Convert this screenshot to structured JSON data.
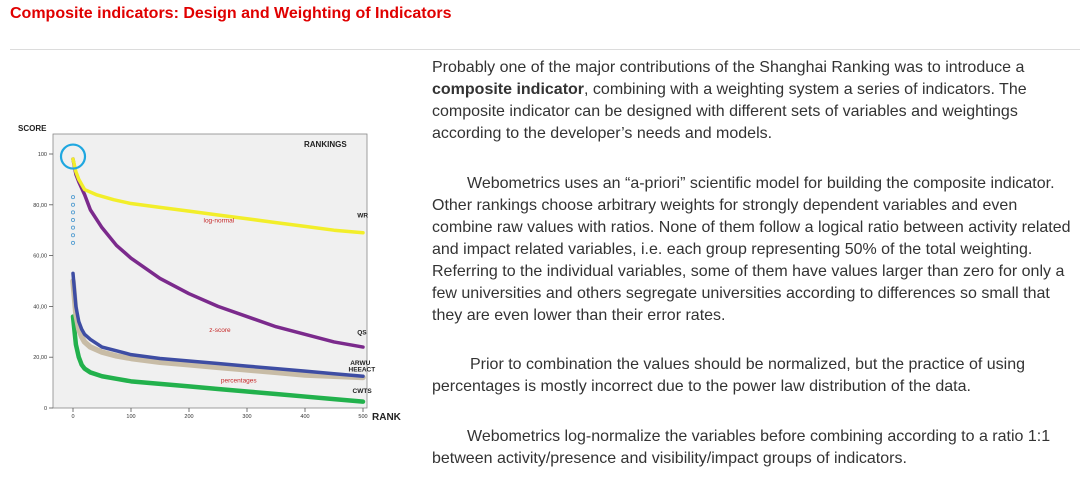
{
  "header": {
    "title": "Composite indicators: Design and Weighting of Indicators",
    "title_color": "#e00000"
  },
  "figure": {
    "chart_data": {
      "type": "line",
      "title": "RANKINGS",
      "ylabel": "SCORE",
      "xlabel": "RANK",
      "ylim": [
        0,
        100
      ],
      "xlim": [
        0,
        500
      ],
      "x_ticks": [
        "0",
        "100",
        "200",
        "300",
        "400",
        "500"
      ],
      "y_ticks": [
        "0",
        "20,00",
        "40,00",
        "60,00",
        "80,00",
        "100"
      ],
      "grid": false,
      "series": [
        {
          "name": "WR",
          "color": "#f2ee2a",
          "x": [
            0,
            5,
            10,
            20,
            40,
            70,
            100,
            150,
            200,
            250,
            300,
            350,
            400,
            450,
            500
          ],
          "y": [
            98,
            93,
            90,
            86,
            84,
            82,
            80.5,
            79,
            77.5,
            76,
            74.5,
            73,
            71.5,
            70,
            69
          ]
        },
        {
          "name": "QS",
          "color": "#7b2a8c",
          "x": [
            0,
            5,
            10,
            20,
            30,
            50,
            75,
            100,
            150,
            200,
            250,
            300,
            350,
            400,
            450,
            500
          ],
          "y": [
            98,
            92,
            89,
            84,
            78,
            71,
            64,
            59,
            51,
            45,
            40,
            36,
            32,
            29,
            26,
            24
          ]
        },
        {
          "name": "ARWU",
          "color": "#3e4da3",
          "x": [
            0,
            5,
            10,
            15,
            20,
            30,
            50,
            75,
            100,
            150,
            200,
            250,
            300,
            350,
            400,
            450,
            500
          ],
          "y": [
            53,
            40,
            34,
            31,
            29,
            27,
            24,
            22.5,
            21,
            19.5,
            18.5,
            17.5,
            16.5,
            15.5,
            14.5,
            13.5,
            12.5
          ]
        },
        {
          "name": "HEEACT",
          "color": "#c8bca6",
          "x": [
            0,
            5,
            10,
            15,
            20,
            30,
            50,
            75,
            100,
            150,
            200,
            250,
            300,
            350,
            400,
            450,
            500
          ],
          "y": [
            50,
            37,
            31,
            28,
            26,
            24,
            22,
            20.5,
            19.5,
            18,
            17,
            16,
            15,
            14,
            13,
            12.5,
            12
          ]
        },
        {
          "name": "CWTS",
          "color": "#22b14c",
          "x": [
            0,
            5,
            10,
            15,
            20,
            30,
            50,
            75,
            100,
            150,
            200,
            250,
            300,
            350,
            400,
            450,
            500
          ],
          "y": [
            36,
            25,
            20,
            17,
            15.5,
            14,
            12.5,
            11.5,
            10.5,
            9.5,
            8.5,
            7.5,
            6.5,
            5.5,
            4.5,
            3.5,
            2.5
          ]
        }
      ],
      "scatter": {
        "name": "log-normal",
        "color": "#4f9bd0",
        "x": [
          0,
          0,
          0,
          0,
          0,
          0,
          0
        ],
        "y": [
          83,
          80,
          77,
          74,
          71,
          68,
          65
        ]
      },
      "annotations": [
        {
          "text": "log-normal",
          "x": 225,
          "y": 73,
          "color": "#c62828"
        },
        {
          "text": "z-score",
          "x": 235,
          "y": 30,
          "color": "#c62828"
        },
        {
          "text": "percentages",
          "x": 255,
          "y": 10,
          "color": "#c62828"
        },
        {
          "text": "WR",
          "x": 490,
          "y": 75,
          "color": "#222222"
        },
        {
          "text": "QS",
          "x": 490,
          "y": 29,
          "color": "#222222"
        },
        {
          "text": "ARWU",
          "x": 478,
          "y": 17,
          "color": "#222222"
        },
        {
          "text": "HEEACT",
          "x": 475,
          "y": 14.4,
          "color": "#222222"
        },
        {
          "text": "CWTS",
          "x": 482,
          "y": 6,
          "color": "#222222"
        }
      ],
      "highlight": {
        "x": 0,
        "y": 99,
        "color": "#1fa7e0"
      }
    }
  },
  "body": {
    "p1_before": "Probably one of the major contributions of the Shanghai Ranking was to introduce a ",
    "p1_bold": "composite indicator",
    "p1_after": ", combining with a weighting system a series of indicators. The composite indicator can be designed with different sets of variables and weightings according to the developer’s needs and models.",
    "p2": "Webometrics uses an “a-priori” scientific model for building the composite indicator. Other rankings choose arbitrary weights for strongly dependent variables and even combine raw values with ratios. None of them follow a logical ratio between activity related and impact related variables, i.e. each group representing 50% of the total weighting. Referring to the individual variables, some of them have values larger than zero for only a few universities and others segregate universities according to differences so small that they are even lower than their error rates.",
    "p3": "Prior to combination the values should be normalized, but the practice of using percentages is mostly incorrect due to the power law distribution of the data.",
    "p4": "Webometrics log-normalize the variables before combining according to a ratio 1:1 between activity/presence and visibility/impact groups of indicators."
  }
}
